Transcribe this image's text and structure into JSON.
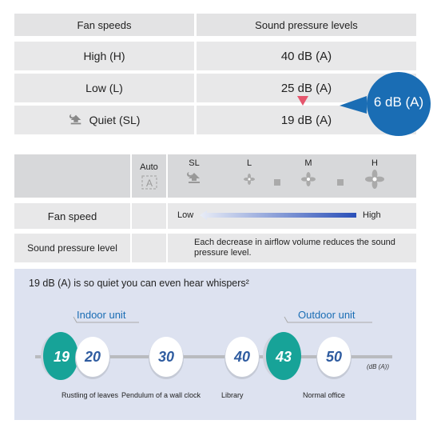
{
  "top_table": {
    "header": {
      "col1": "Fan speeds",
      "col2": "Sound pressure levels"
    },
    "rows": [
      {
        "speed": "High (H)",
        "level": "40 dB (A)"
      },
      {
        "speed": "Low (L)",
        "level": "25 dB (A)"
      },
      {
        "speed": "Quiet (SL)",
        "level": "19 dB (A)",
        "icon": "quiet-mode-icon"
      }
    ],
    "reduction_badge": "6 dB (A)"
  },
  "mode_table": {
    "modes": [
      {
        "label": "Auto",
        "icon": "auto-a-icon"
      },
      {
        "label": "SL",
        "icon": "quiet-mode-icon"
      },
      {
        "label": "L",
        "icon": "fan-small-icon"
      },
      {
        "label": "M",
        "icon": "fan-medium-icon"
      },
      {
        "label": "H",
        "icon": "fan-large-icon"
      }
    ],
    "fan_speed_label": "Fan speed",
    "fan_low": "Low",
    "fan_high": "High",
    "sound_label": "Sound pressure level",
    "sound_text": "Each decrease in airflow volume reduces the sound pressure level."
  },
  "scale": {
    "headline": "19 dB (A) is so quiet you can even hear whispers²",
    "indoor_label": "Indoor unit",
    "outdoor_label": "Outdoor unit",
    "unit": "(dB (A))",
    "bubbles": [
      "19",
      "20",
      "30",
      "40",
      "43",
      "50"
    ],
    "captions": [
      "Rustling of leaves",
      "Pendulum of a wall clock",
      "Library",
      "Normal office"
    ],
    "colors": {
      "teal": "#17a398",
      "blue": "#2f5ca0",
      "accent_blue": "#1a6db4"
    }
  }
}
